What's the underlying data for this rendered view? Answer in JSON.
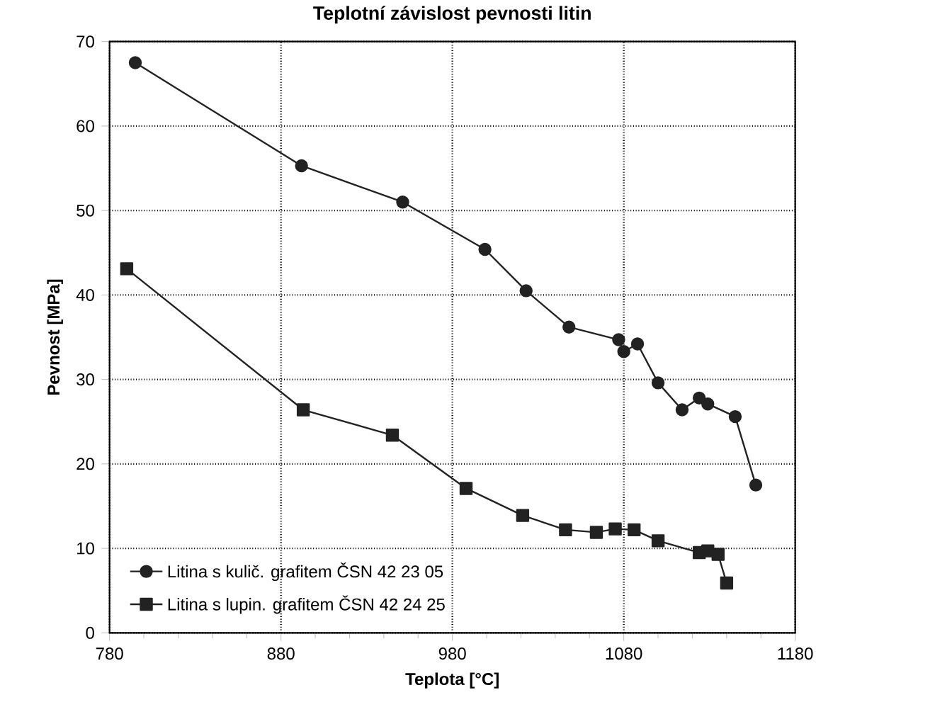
{
  "chart_data": {
    "type": "line",
    "title": "Teplotní závislost pevnosti litin",
    "xlabel": "Teplota [°C]",
    "ylabel": "Pevnost [MPa]",
    "xlim": [
      780,
      1180
    ],
    "xticks": [
      780,
      880,
      980,
      1080,
      1180
    ],
    "ylim": [
      0,
      70
    ],
    "yticks": [
      0,
      10,
      20,
      30,
      40,
      50,
      60,
      70
    ],
    "grid": true,
    "legend": "bottom left",
    "line_style": "solid",
    "series": [
      {
        "name": "Litina s kulič. grafitem ČSN 42 23 05",
        "color": "#222222",
        "marker": "circle",
        "x": [
          795,
          892,
          951,
          999,
          1023,
          1048,
          1077,
          1080,
          1088,
          1100,
          1114,
          1124,
          1129,
          1145,
          1157
        ],
        "values": [
          67.5,
          55.3,
          51,
          45.4,
          40.5,
          36.2,
          34.7,
          33.3,
          34.2,
          29.6,
          26.4,
          27.8,
          27.1,
          25.6,
          17.5
        ]
      },
      {
        "name": "Litina s lupin. grafitem ČSN 42 24 25",
        "color": "#222222",
        "marker": "square",
        "x": [
          790,
          893,
          945,
          988,
          1021,
          1046,
          1064,
          1075,
          1086,
          1100,
          1124,
          1129,
          1135,
          1140
        ],
        "values": [
          43.1,
          26.4,
          23.4,
          17.1,
          13.9,
          12.2,
          11.9,
          12.3,
          12.2,
          10.9,
          9.5,
          9.7,
          9.3,
          5.9
        ]
      }
    ]
  }
}
